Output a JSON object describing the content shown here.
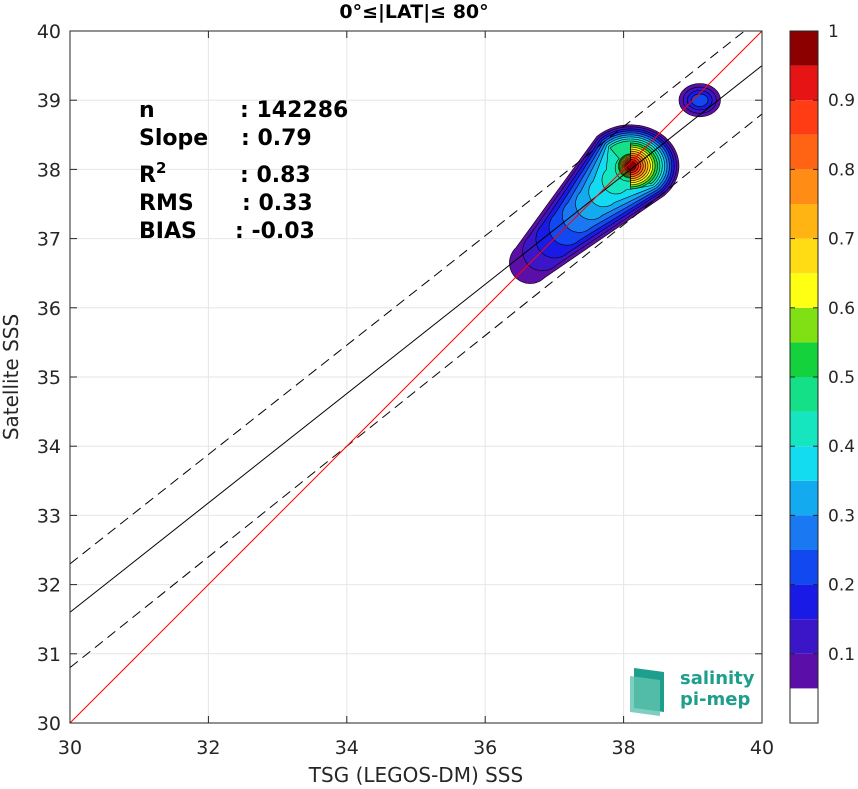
{
  "chart_data": {
    "type": "heatmap",
    "title": "0°≤|LAT|≤ 80°",
    "xlabel": "TSG (LEGOS-DM) SSS",
    "ylabel": "Satellite SSS",
    "xlim": [
      30,
      40
    ],
    "ylim": [
      30,
      40
    ],
    "xticks": [
      "30",
      "32",
      "34",
      "36",
      "38",
      "40"
    ],
    "yticks": [
      "30",
      "31",
      "32",
      "33",
      "34",
      "35",
      "36",
      "37",
      "38",
      "39",
      "40"
    ],
    "grid": true,
    "stats": [
      {
        "key": "n",
        "value": ": 142286"
      },
      {
        "key": "Slope",
        "value": ": 0.79"
      },
      {
        "key": "R",
        "sup": "2",
        "value": ": 0.83"
      },
      {
        "key": "RMS",
        "value": ": 0.33"
      },
      {
        "key": "BIAS",
        "value": ": -0.03"
      }
    ],
    "lines": {
      "identity": {
        "x": [
          30,
          40
        ],
        "y": [
          30,
          40
        ],
        "color": "#ff0000"
      },
      "fit": {
        "x": [
          30,
          40
        ],
        "y": [
          31.6,
          39.5
        ],
        "color": "#000000"
      },
      "fit_upper": {
        "x": [
          30,
          40
        ],
        "y": [
          32.3,
          40.2
        ],
        "color": "#000000",
        "style": "dashed"
      },
      "fit_lower": {
        "x": [
          30,
          40
        ],
        "y": [
          30.8,
          38.8
        ],
        "color": "#000000",
        "style": "dashed"
      }
    },
    "density_peaks": [
      {
        "x": 38.1,
        "y": 38.05,
        "peak": 1.0
      },
      {
        "x": 39.1,
        "y": 39.0,
        "peak": 0.22
      }
    ],
    "colorbar": {
      "range": [
        0,
        1
      ],
      "ticks": [
        "0.1",
        "0.2",
        "0.3",
        "0.4",
        "0.5",
        "0.6",
        "0.7",
        "0.8",
        "0.9",
        "1"
      ],
      "levels": [
        {
          "from": 0.0,
          "to": 0.05,
          "color": "#ffffff"
        },
        {
          "from": 0.05,
          "to": 0.1,
          "color": "#5b0fa8"
        },
        {
          "from": 0.1,
          "to": 0.15,
          "color": "#3a16c8"
        },
        {
          "from": 0.15,
          "to": 0.2,
          "color": "#1a1ae6"
        },
        {
          "from": 0.2,
          "to": 0.25,
          "color": "#1248f0"
        },
        {
          "from": 0.25,
          "to": 0.3,
          "color": "#1a78f2"
        },
        {
          "from": 0.3,
          "to": 0.35,
          "color": "#14aaf0"
        },
        {
          "from": 0.35,
          "to": 0.4,
          "color": "#14dcf0"
        },
        {
          "from": 0.4,
          "to": 0.45,
          "color": "#16e6c0"
        },
        {
          "from": 0.45,
          "to": 0.5,
          "color": "#14e088"
        },
        {
          "from": 0.5,
          "to": 0.55,
          "color": "#14d23c"
        },
        {
          "from": 0.55,
          "to": 0.6,
          "color": "#80e014"
        },
        {
          "from": 0.6,
          "to": 0.65,
          "color": "#ffff14"
        },
        {
          "from": 0.65,
          "to": 0.7,
          "color": "#ffdc14"
        },
        {
          "from": 0.7,
          "to": 0.75,
          "color": "#ffb414"
        },
        {
          "from": 0.75,
          "to": 0.8,
          "color": "#ff8c14"
        },
        {
          "from": 0.8,
          "to": 0.85,
          "color": "#ff6414"
        },
        {
          "from": 0.85,
          "to": 0.9,
          "color": "#ff3c14"
        },
        {
          "from": 0.9,
          "to": 0.95,
          "color": "#e61414"
        },
        {
          "from": 0.95,
          "to": 1.0,
          "color": "#8c0000"
        }
      ]
    }
  },
  "logo": {
    "line1": "salinity",
    "line2": "pi-mep"
  }
}
